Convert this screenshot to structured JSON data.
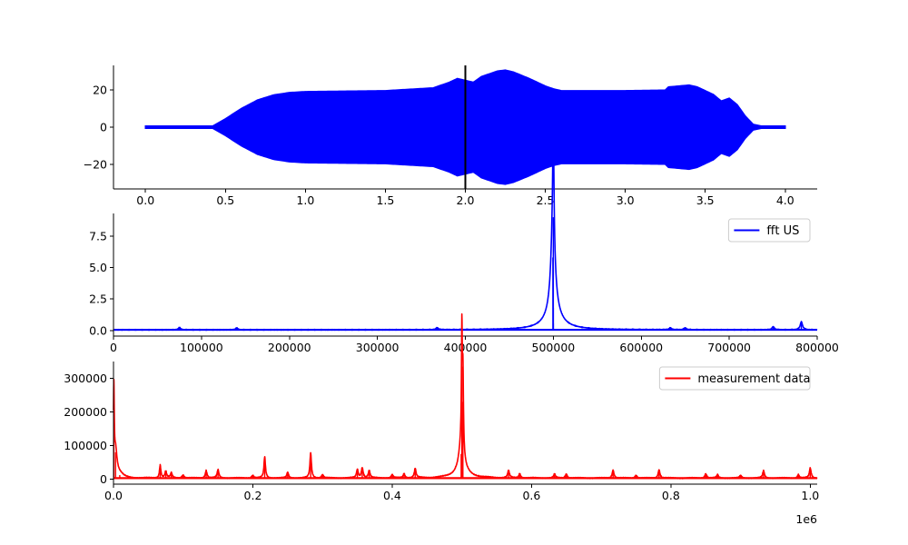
{
  "chart_data": [
    {
      "type": "line",
      "subplot": "time-signal",
      "title": "",
      "xlabel": "",
      "ylabel": "",
      "xlim": [
        -0.2,
        4.2
      ],
      "ylim": [
        -33,
        33
      ],
      "xticks": [
        0.0,
        0.5,
        1.0,
        1.5,
        2.0,
        2.5,
        3.0,
        3.5,
        4.0
      ],
      "xtick_labels": [
        "0.0",
        "0.5",
        "1.0",
        "1.5",
        "2.0",
        "2.5",
        "3.0",
        "3.5",
        "4.0"
      ],
      "yticks": [
        -20,
        0,
        20
      ],
      "ytick_labels": [
        "−20",
        "0",
        "20"
      ],
      "legend": null,
      "color": "#0000ff",
      "envelope": {
        "x": [
          0.0,
          0.42,
          0.5,
          0.6,
          0.7,
          0.8,
          0.9,
          1.0,
          1.5,
          1.8,
          1.9,
          1.95,
          2.0,
          2.05,
          2.1,
          2.2,
          2.25,
          2.3,
          2.4,
          2.5,
          2.55,
          2.6,
          3.0,
          3.25,
          3.27,
          3.4,
          3.45,
          3.55,
          3.6,
          3.65,
          3.7,
          3.75,
          3.8,
          3.85,
          4.0
        ],
        "amplitude": [
          0.6,
          0.6,
          4.5,
          10,
          14.5,
          17.2,
          18.5,
          19,
          19.5,
          21,
          24,
          26,
          25,
          24,
          27,
          30,
          30.5,
          29.5,
          26,
          22,
          20.5,
          19.5,
          19.5,
          19.8,
          21.5,
          22.5,
          21.5,
          17.5,
          14,
          15.5,
          12,
          6,
          1.5,
          0.6,
          0.6
        ]
      },
      "vline": {
        "x": 2.0,
        "color": "#000000"
      }
    },
    {
      "type": "line",
      "subplot": "fft-us",
      "title": "",
      "xlabel": "",
      "ylabel": "",
      "xlim": [
        0,
        800000
      ],
      "ylim": [
        -0.45,
        9.3
      ],
      "xticks": [
        0,
        100000,
        200000,
        300000,
        400000,
        500000,
        600000,
        700000,
        800000
      ],
      "xtick_labels": [
        "0",
        "100000",
        "200000",
        "300000",
        "400000",
        "500000",
        "600000",
        "700000",
        "800000"
      ],
      "yticks": [
        0.0,
        2.5,
        5.0,
        7.5
      ],
      "ytick_labels": [
        "0.0",
        "2.5",
        "5.0",
        "7.5"
      ],
      "legend": {
        "label": "fft US",
        "loc": "upper right"
      },
      "color": "#0000ff",
      "baseline": 0.05,
      "peaks": [
        {
          "x": 500000,
          "y": 9.0,
          "w": 800
        },
        {
          "x": 499500,
          "y": 5.8,
          "w": 2500
        },
        {
          "x": 500000,
          "y": 1.8,
          "w": 6000
        },
        {
          "x": 500000,
          "y": 0.55,
          "w": 16000
        },
        {
          "x": 75000,
          "y": 0.18,
          "w": 1500
        },
        {
          "x": 140000,
          "y": 0.15,
          "w": 1500
        },
        {
          "x": 368000,
          "y": 0.16,
          "w": 1500
        },
        {
          "x": 633000,
          "y": 0.15,
          "w": 1500
        },
        {
          "x": 650000,
          "y": 0.15,
          "w": 1500
        },
        {
          "x": 750000,
          "y": 0.25,
          "w": 1500
        },
        {
          "x": 782000,
          "y": 0.65,
          "w": 1500
        }
      ]
    },
    {
      "type": "line",
      "subplot": "measurement",
      "title": "",
      "xlabel": "",
      "ylabel": "",
      "xlim": [
        0,
        1010000
      ],
      "ylim": [
        -15000,
        350000
      ],
      "xticks": [
        0,
        200000,
        400000,
        600000,
        800000,
        1000000
      ],
      "xtick_labels": [
        "0.0",
        "0.2",
        "0.4",
        "0.6",
        "0.8",
        "1.0"
      ],
      "x_offset_label": "1e6",
      "yticks": [
        0,
        100000,
        200000,
        300000
      ],
      "ytick_labels": [
        "0",
        "100000",
        "200000",
        "300000"
      ],
      "legend": {
        "label": "measurement data",
        "loc": "upper right"
      },
      "color": "#ff0000",
      "baseline": 3000,
      "peaks": [
        {
          "x": 500,
          "y": 250000,
          "w": 700
        },
        {
          "x": 3000,
          "y": 80000,
          "w": 2500
        },
        {
          "x": 9000,
          "y": 12000,
          "w": 6000
        },
        {
          "x": 67000,
          "y": 38000,
          "w": 1200
        },
        {
          "x": 75000,
          "y": 20000,
          "w": 1500
        },
        {
          "x": 83000,
          "y": 15000,
          "w": 1500
        },
        {
          "x": 100000,
          "y": 9000,
          "w": 1500
        },
        {
          "x": 133000,
          "y": 22000,
          "w": 1500
        },
        {
          "x": 150000,
          "y": 25000,
          "w": 1500
        },
        {
          "x": 200000,
          "y": 8000,
          "w": 1500
        },
        {
          "x": 217000,
          "y": 63000,
          "w": 1300
        },
        {
          "x": 250000,
          "y": 17000,
          "w": 1500
        },
        {
          "x": 283000,
          "y": 75000,
          "w": 1300
        },
        {
          "x": 300000,
          "y": 10000,
          "w": 1500
        },
        {
          "x": 350000,
          "y": 25000,
          "w": 1500
        },
        {
          "x": 357000,
          "y": 30000,
          "w": 1500
        },
        {
          "x": 367000,
          "y": 22000,
          "w": 1500
        },
        {
          "x": 400000,
          "y": 10000,
          "w": 1500
        },
        {
          "x": 417000,
          "y": 12000,
          "w": 1500
        },
        {
          "x": 433000,
          "y": 28000,
          "w": 1500
        },
        {
          "x": 500000,
          "y": 335000,
          "w": 700
        },
        {
          "x": 501500,
          "y": 230000,
          "w": 900
        },
        {
          "x": 499000,
          "y": 75000,
          "w": 4000
        },
        {
          "x": 500000,
          "y": 22000,
          "w": 12000
        },
        {
          "x": 567000,
          "y": 22000,
          "w": 1500
        },
        {
          "x": 583000,
          "y": 12000,
          "w": 1500
        },
        {
          "x": 633000,
          "y": 12000,
          "w": 1500
        },
        {
          "x": 650000,
          "y": 12000,
          "w": 1500
        },
        {
          "x": 717000,
          "y": 24000,
          "w": 1500
        },
        {
          "x": 750000,
          "y": 8000,
          "w": 1500
        },
        {
          "x": 783000,
          "y": 25000,
          "w": 1500
        },
        {
          "x": 850000,
          "y": 13000,
          "w": 1500
        },
        {
          "x": 867000,
          "y": 10000,
          "w": 1500
        },
        {
          "x": 900000,
          "y": 8000,
          "w": 1500
        },
        {
          "x": 933000,
          "y": 22000,
          "w": 1500
        },
        {
          "x": 983000,
          "y": 10000,
          "w": 1500
        },
        {
          "x": 1000000,
          "y": 30000,
          "w": 1500
        }
      ]
    }
  ]
}
